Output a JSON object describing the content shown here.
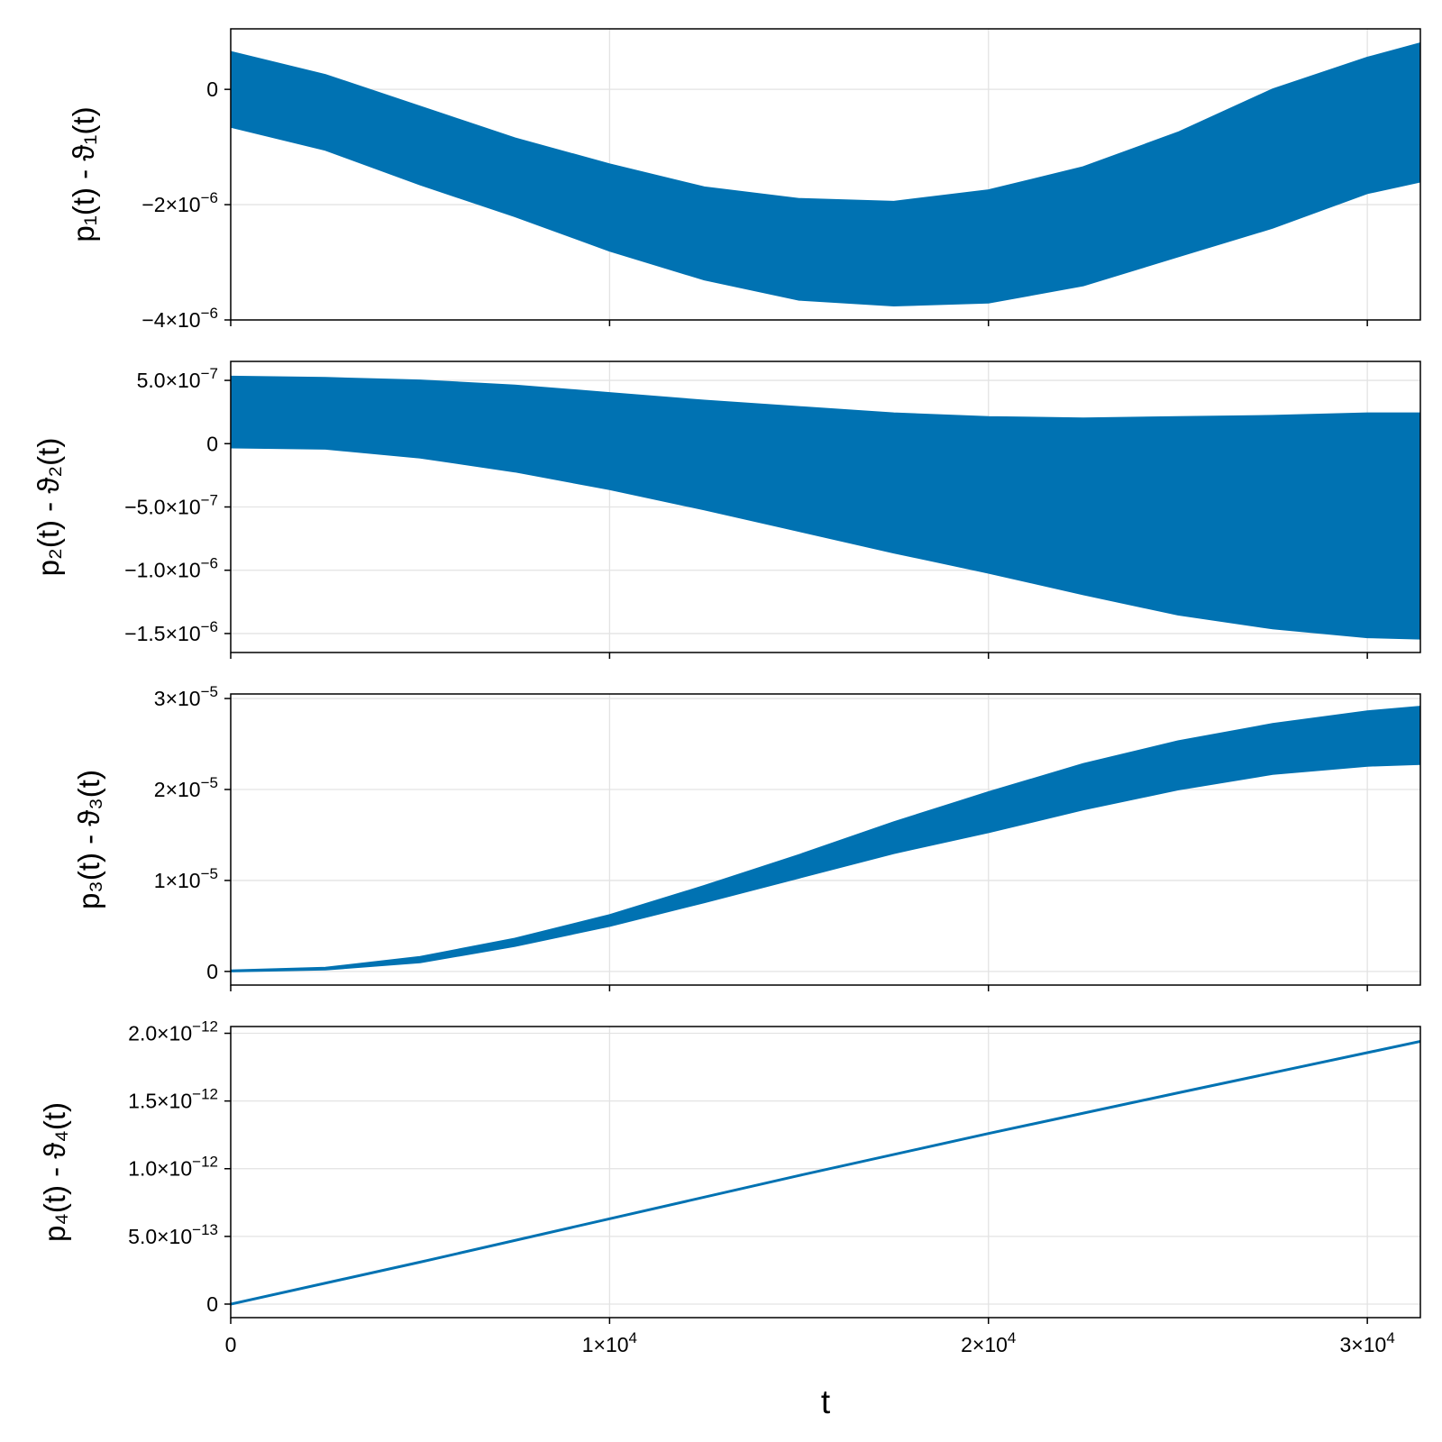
{
  "colors": {
    "series": "#0072b2",
    "grid": "#e3e3e3",
    "axis": "#000000"
  },
  "x_axis": {
    "label": "t",
    "range": [
      0,
      31400
    ],
    "ticks": [
      {
        "value": 0,
        "label": "0",
        "exp": ""
      },
      {
        "value": 10000,
        "label": "1×10",
        "exp": "4"
      },
      {
        "value": 20000,
        "label": "2×10",
        "exp": "4"
      },
      {
        "value": 30000,
        "label": "3×10",
        "exp": "4"
      }
    ]
  },
  "chart_data": [
    {
      "type": "area",
      "ylabel": "p₁(t) - ϑ₁(t)",
      "xlim": [
        0,
        31400
      ],
      "ylim": [
        -4e-06,
        1.05e-06
      ],
      "grid": true,
      "yticks": [
        {
          "value": 0,
          "label": "0",
          "exp": ""
        },
        {
          "value": -2e-06,
          "label": "−2×10",
          "exp": "−6"
        },
        {
          "value": -4e-06,
          "label": "−4×10",
          "exp": "−6"
        }
      ],
      "series": [
        {
          "x": [
            0,
            2500,
            5000,
            7500,
            10000,
            12500,
            15000,
            17500,
            20000,
            22500,
            25000,
            27500,
            30000,
            31400
          ],
          "upper": [
            6.5e-07,
            2.5e-07,
            -3e-07,
            -8.5e-07,
            -1.3e-06,
            -1.7e-06,
            -1.9e-06,
            -1.95e-06,
            -1.75e-06,
            -1.35e-06,
            -7.5e-07,
            0.0,
            5.5e-07,
            8e-07
          ],
          "lower": [
            -6.5e-07,
            -1.05e-06,
            -1.65e-06,
            -2.2e-06,
            -2.8e-06,
            -3.3e-06,
            -3.65e-06,
            -3.75e-06,
            -3.7e-06,
            -3.4e-06,
            -2.9e-06,
            -2.4e-06,
            -1.8e-06,
            -1.6e-06
          ]
        }
      ]
    },
    {
      "type": "area",
      "ylabel": "p₂(t) - ϑ₂(t)",
      "xlim": [
        0,
        31400
      ],
      "ylim": [
        -1.65e-06,
        6.5e-07
      ],
      "grid": true,
      "yticks": [
        {
          "value": 5e-07,
          "label": "5.0×10",
          "exp": "−7"
        },
        {
          "value": 0,
          "label": "0",
          "exp": ""
        },
        {
          "value": -5e-07,
          "label": "−5.0×10",
          "exp": "−7"
        },
        {
          "value": -1e-06,
          "label": "−1.0×10",
          "exp": "−6"
        },
        {
          "value": -1.5e-06,
          "label": "−1.5×10",
          "exp": "−6"
        }
      ],
      "series": [
        {
          "x": [
            0,
            2500,
            5000,
            7500,
            10000,
            12500,
            15000,
            17500,
            20000,
            22500,
            25000,
            27500,
            30000,
            31400
          ],
          "upper": [
            5.3e-07,
            5.2e-07,
            5e-07,
            4.6e-07,
            4e-07,
            3.4e-07,
            2.9e-07,
            2.4e-07,
            2.1e-07,
            2e-07,
            2.1e-07,
            2.2e-07,
            2.4e-07,
            2.4e-07
          ],
          "lower": [
            -3e-08,
            -4e-08,
            -1.1e-07,
            -2.2e-07,
            -3.6e-07,
            -5.2e-07,
            -6.9e-07,
            -8.6e-07,
            -1.02e-06,
            -1.19e-06,
            -1.35e-06,
            -1.46e-06,
            -1.53e-06,
            -1.54e-06
          ]
        }
      ]
    },
    {
      "type": "area",
      "ylabel": "p₃(t) - ϑ₃(t)",
      "xlim": [
        0,
        31400
      ],
      "ylim": [
        -1.5e-06,
        3.05e-05
      ],
      "grid": true,
      "yticks": [
        {
          "value": 3e-05,
          "label": "3×10",
          "exp": "−5"
        },
        {
          "value": 2e-05,
          "label": "2×10",
          "exp": "−5"
        },
        {
          "value": 1e-05,
          "label": "1×10",
          "exp": "−5"
        },
        {
          "value": 0,
          "label": "0",
          "exp": ""
        }
      ],
      "series": [
        {
          "x": [
            0,
            2500,
            5000,
            7500,
            10000,
            12500,
            15000,
            17500,
            20000,
            22500,
            25000,
            27500,
            30000,
            31400
          ],
          "upper": [
            1e-07,
            4e-07,
            1.6e-06,
            3.6e-06,
            6.2e-06,
            9.4e-06,
            1.28e-05,
            1.64e-05,
            1.97e-05,
            2.28e-05,
            2.53e-05,
            2.72e-05,
            2.86e-05,
            2.91e-05
          ],
          "lower": [
            0.0,
            2e-07,
            1e-06,
            2.8e-06,
            5e-06,
            7.6e-06,
            1.03e-05,
            1.3e-05,
            1.53e-05,
            1.78e-05,
            2e-05,
            2.17e-05,
            2.26e-05,
            2.28e-05
          ]
        }
      ]
    },
    {
      "type": "line",
      "ylabel": "p₄(t) - ϑ₄(t)",
      "xlim": [
        0,
        31400
      ],
      "ylim": [
        -1e-13,
        2.05e-12
      ],
      "grid": true,
      "yticks": [
        {
          "value": 2e-12,
          "label": "2.0×10",
          "exp": "−12"
        },
        {
          "value": 1.5e-12,
          "label": "1.5×10",
          "exp": "−12"
        },
        {
          "value": 1e-12,
          "label": "1.0×10",
          "exp": "−12"
        },
        {
          "value": 5e-13,
          "label": "5.0×10",
          "exp": "−13"
        },
        {
          "value": 0,
          "label": "0",
          "exp": ""
        }
      ],
      "series": [
        {
          "x": [
            0,
            5000,
            10000,
            15000,
            20000,
            25000,
            31400
          ],
          "y": [
            0.0,
            3.1e-13,
            6.3e-13,
            9.5e-13,
            1.26e-12,
            1.56e-12,
            1.94e-12
          ]
        }
      ]
    }
  ]
}
